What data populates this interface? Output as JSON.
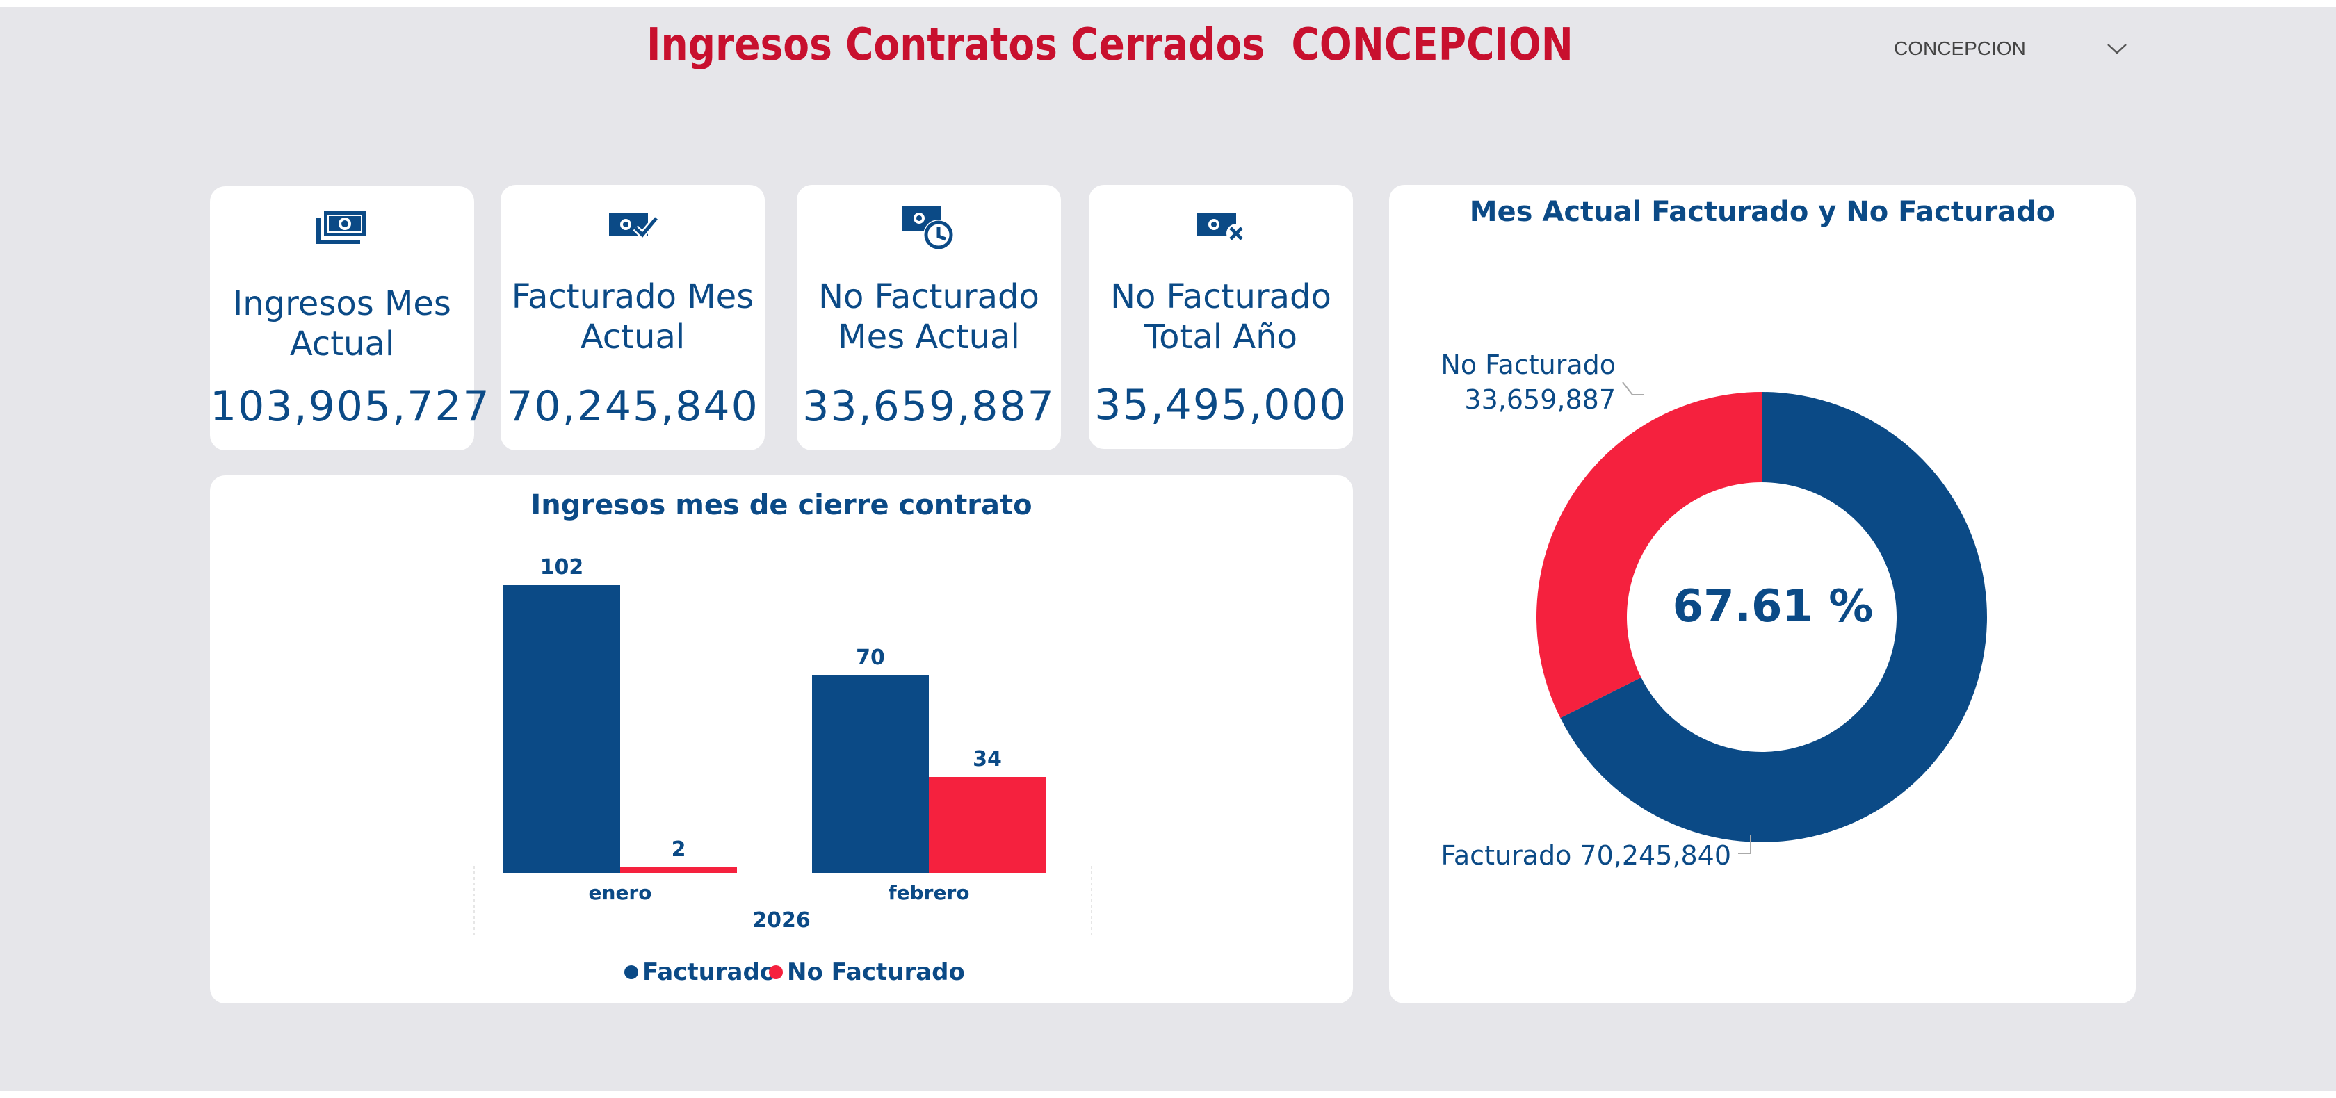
{
  "header": {
    "title": "Ingresos Contratos Cerrados  CONCEPCION",
    "slicer_value": "CONCEPCION",
    "slicer_icon": "chevron-down-icon"
  },
  "colors": {
    "background": "#e6e6ea",
    "title": "#c8102e",
    "primary": "#0b4a86",
    "secondary": "#f5213e"
  },
  "kpis": [
    {
      "icon": "money-stack-icon",
      "label": "Ingresos Mes\nActual",
      "value": "103,905,727"
    },
    {
      "icon": "money-check-icon",
      "label": "Facturado Mes\nActual",
      "value": "70,245,840"
    },
    {
      "icon": "money-clock-icon",
      "label": "No Facturado\nMes Actual",
      "value": "33,659,887"
    },
    {
      "icon": "money-x-icon",
      "label": "No Facturado\nTotal Año",
      "value": "35,495,000"
    }
  ],
  "bar_panel": {
    "title": "Ingresos mes de cierre contrato"
  },
  "donut_panel": {
    "title": "Mes Actual Facturado y No Facturado",
    "center_label": "67.61 %",
    "label_no_facturado_name": "No Facturado",
    "label_no_facturado_value": "33,659,887",
    "label_facturado": "Facturado 70,245,840"
  },
  "chart_data": [
    {
      "type": "bar",
      "title": "Ingresos mes de cierre contrato",
      "categories": [
        "enero",
        "febrero"
      ],
      "group_label": "2026",
      "series": [
        {
          "name": "Facturado",
          "color": "#0b4a86",
          "values": [
            102,
            70
          ]
        },
        {
          "name": "No Facturado",
          "color": "#f5213e",
          "values": [
            2,
            34
          ]
        }
      ],
      "ylim": [
        0,
        102
      ],
      "legend": "bottom"
    },
    {
      "type": "pie",
      "title": "Mes Actual Facturado y No Facturado",
      "slices": [
        {
          "name": "Facturado",
          "value": 70245840,
          "color": "#0b4a86"
        },
        {
          "name": "No Facturado",
          "value": 33659887,
          "color": "#f5213e"
        }
      ],
      "center_label": "67.61 %"
    }
  ]
}
